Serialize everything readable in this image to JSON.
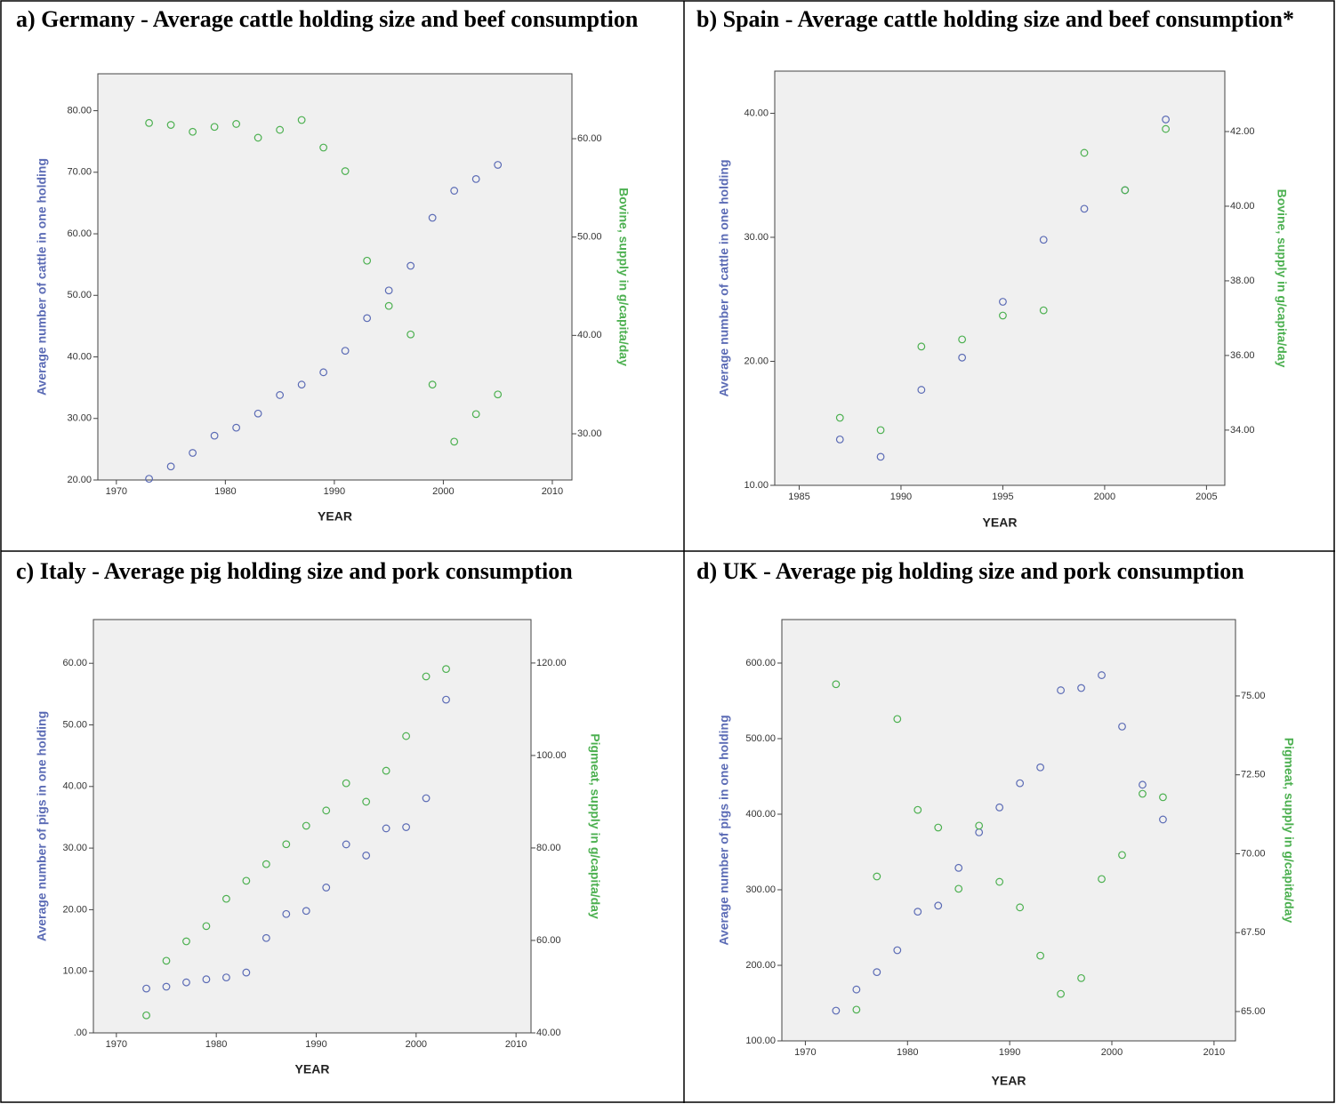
{
  "chart_data": [
    {
      "type": "scatter",
      "title": "a) Germany - Average cattle holding size and beef consumption",
      "x_label": "YEAR",
      "y_label": "Average number of cattle in one holding",
      "y2_label": "Bovine, supply in g/capita/day",
      "x": [
        1973,
        1975,
        1977,
        1979,
        1981,
        1983,
        1985,
        1987,
        1989,
        1991,
        1993,
        1995,
        1997,
        1999,
        2001,
        2003,
        2005
      ],
      "series": [
        {
          "color": "#5b6bb5",
          "values": [
            20.2,
            22.2,
            24.4,
            27.2,
            28.5,
            30.8,
            33.8,
            35.5,
            37.5,
            41.0,
            46.3,
            50.8,
            54.8,
            62.6,
            67.0,
            68.9,
            71.2
          ]
        },
        {
          "color": "#4cb050",
          "axis": "y2",
          "values": [
            61.6,
            61.4,
            60.7,
            61.2,
            61.5,
            60.1,
            60.9,
            61.9,
            59.1,
            56.7,
            47.6,
            43.0,
            40.1,
            35.0,
            29.2,
            32.0,
            34.0
          ]
        }
      ],
      "xlim": [
        1968.3,
        2011.8
      ],
      "xticks": [
        1970,
        1980,
        1990,
        2000,
        2010
      ],
      "ylim": [
        20,
        86
      ],
      "yticks": [
        {
          "value": 20,
          "label": "20.00"
        },
        {
          "value": 30,
          "label": "30.00"
        },
        {
          "value": 40,
          "label": "40.00"
        },
        {
          "value": 50,
          "label": "50.00"
        },
        {
          "value": 60,
          "label": "60.00"
        },
        {
          "value": 70,
          "label": "70.00"
        },
        {
          "value": 80,
          "label": "80.00"
        }
      ],
      "y2lim": [
        25.3,
        66.6
      ],
      "y2ticks": [
        {
          "value": 30,
          "label": "30.00"
        },
        {
          "value": 40,
          "label": "40.00"
        },
        {
          "value": 50,
          "label": "50.00"
        },
        {
          "value": 60,
          "label": "60.00"
        }
      ]
    },
    {
      "type": "scatter",
      "title": "b) Spain - Average cattle holding size and beef consumption*",
      "x_label": "YEAR",
      "y_label": "Average number of cattle in one holding",
      "y2_label": "Bovine, supply in g/capita/day",
      "x": [
        1987,
        1989,
        1991,
        1993,
        1995,
        1997,
        1999,
        2001,
        2003
      ],
      "series": [
        {
          "color": "#5b6bb5",
          "values": [
            13.7,
            12.3,
            17.7,
            20.3,
            24.8,
            29.8,
            32.3,
            33.8,
            39.5
          ]
        },
        {
          "color": "#4cb050",
          "axis": "y2",
          "values": [
            34.33,
            34.0,
            36.24,
            36.43,
            37.07,
            37.21,
            41.43,
            40.43,
            42.07
          ]
        }
      ],
      "xlim": [
        1983.8,
        2005.9
      ],
      "xticks": [
        1985,
        1990,
        1995,
        2000,
        2005
      ],
      "ylim": [
        10,
        43.4
      ],
      "yticks": [
        {
          "value": 10,
          "label": "10.00"
        },
        {
          "value": 20,
          "label": "20.00"
        },
        {
          "value": 30,
          "label": "30.00"
        },
        {
          "value": 40,
          "label": "40.00"
        }
      ],
      "y2lim": [
        32.52,
        43.62
      ],
      "y2ticks": [
        {
          "value": 34,
          "label": "34.00"
        },
        {
          "value": 36,
          "label": "36.00"
        },
        {
          "value": 38,
          "label": "38.00"
        },
        {
          "value": 40,
          "label": "40.00"
        },
        {
          "value": 42,
          "label": "42.00"
        }
      ]
    },
    {
      "type": "scatter",
      "title": "c) Italy - Average pig holding size and pork consumption",
      "x_label": "YEAR",
      "y_label": "Average number of pigs in one holding",
      "y2_label": "Pigmeat, supply in g/capita/day",
      "x": [
        1973,
        1975,
        1977,
        1979,
        1981,
        1983,
        1985,
        1987,
        1989,
        1991,
        1993,
        1995,
        1997,
        1999,
        2001,
        2003
      ],
      "series": [
        {
          "color": "#5b6bb5",
          "values": [
            7.2,
            7.5,
            8.2,
            8.7,
            9.0,
            9.8,
            15.4,
            19.3,
            19.8,
            23.6,
            30.6,
            28.8,
            33.2,
            33.4,
            38.1,
            54.1
          ]
        },
        {
          "color": "#4cb050",
          "axis": "y2",
          "values": [
            43.8,
            55.6,
            59.8,
            63.1,
            69.0,
            72.9,
            76.5,
            80.8,
            84.8,
            88.1,
            94.0,
            90.0,
            96.7,
            104.2,
            117.1,
            118.7
          ]
        }
      ],
      "xlim": [
        1967.7,
        2011.5
      ],
      "xticks": [
        1970,
        1980,
        1990,
        2000,
        2010
      ],
      "ylim": [
        0,
        67.1
      ],
      "yticks": [
        {
          "value": 0,
          "label": ".00"
        },
        {
          "value": 10,
          "label": "10.00"
        },
        {
          "value": 20,
          "label": "20.00"
        },
        {
          "value": 30,
          "label": "30.00"
        },
        {
          "value": 40,
          "label": "40.00"
        },
        {
          "value": 50,
          "label": "50.00"
        },
        {
          "value": 60,
          "label": "60.00"
        }
      ],
      "y2lim": [
        40,
        129.4
      ],
      "y2ticks": [
        {
          "value": 40,
          "label": "40.00"
        },
        {
          "value": 60,
          "label": "60.00"
        },
        {
          "value": 80,
          "label": "80.00"
        },
        {
          "value": 100,
          "label": "100.00"
        },
        {
          "value": 120,
          "label": "120.00"
        }
      ]
    },
    {
      "type": "scatter",
      "title": "d) UK - Average pig holding size and pork consumption",
      "x_label": "YEAR",
      "y_label": "Average number of pigs in one holding",
      "y2_label": "Pigmeat, supply in g/capita/day",
      "x": [
        1973,
        1975,
        1977,
        1979,
        1981,
        1983,
        1985,
        1987,
        1989,
        1991,
        1993,
        1995,
        1997,
        1999,
        2001,
        2003,
        2005
      ],
      "series": [
        {
          "color": "#5b6bb5",
          "values": [
            140,
            168,
            191,
            220,
            271,
            279,
            329,
            376,
            409,
            441,
            462,
            564,
            567,
            584,
            516,
            439,
            393
          ]
        },
        {
          "color": "#4cb050",
          "axis": "y2",
          "values": [
            75.37,
            65.06,
            69.28,
            74.27,
            71.39,
            70.83,
            68.89,
            70.89,
            69.11,
            68.3,
            66.77,
            65.56,
            66.06,
            69.2,
            69.96,
            71.9,
            71.79
          ]
        }
      ],
      "xlim": [
        1967.7,
        2012.1
      ],
      "xticks": [
        1970,
        1980,
        1990,
        2000,
        2010
      ],
      "ylim": [
        100,
        657.6
      ],
      "yticks": [
        {
          "value": 100,
          "label": "100.00"
        },
        {
          "value": 200,
          "label": "200.00"
        },
        {
          "value": 300,
          "label": "300.00"
        },
        {
          "value": 400,
          "label": "400.00"
        },
        {
          "value": 500,
          "label": "500.00"
        },
        {
          "value": 600,
          "label": "600.00"
        }
      ],
      "y2lim": [
        64.07,
        77.42
      ],
      "y2ticks": [
        {
          "value": 65,
          "label": "65.00"
        },
        {
          "value": 67.5,
          "label": "67.50"
        },
        {
          "value": 70,
          "label": "70.00"
        },
        {
          "value": 72.5,
          "label": "72.50"
        },
        {
          "value": 75,
          "label": "75.00"
        }
      ]
    }
  ]
}
